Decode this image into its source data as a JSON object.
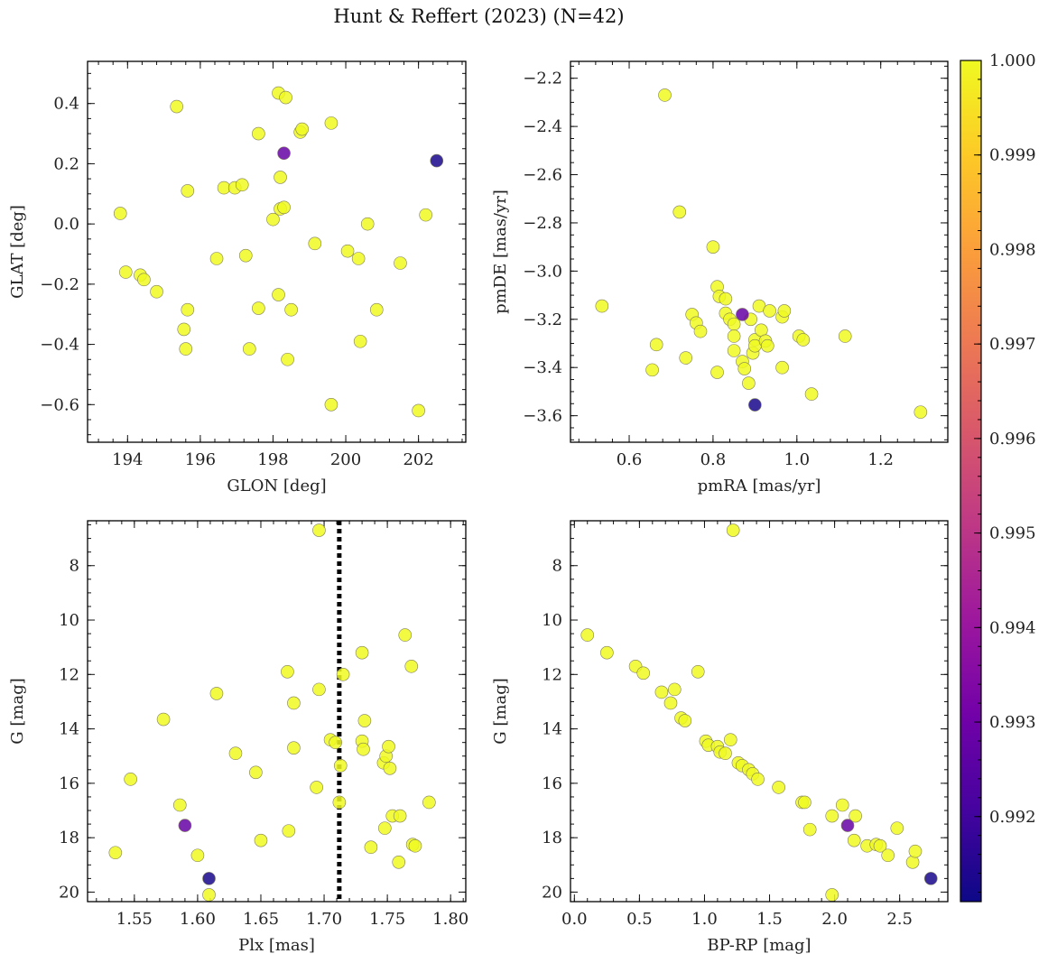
{
  "title": "Hunt & Reffert (2023) (N=42)",
  "colorbar": {
    "range": [
      0.9911,
      1.0
    ],
    "ticks": [
      0.992,
      0.993,
      0.994,
      0.995,
      0.996,
      0.997,
      0.998,
      0.999,
      1.0
    ],
    "tick_labels": [
      "0.992",
      "0.993",
      "0.994",
      "0.995",
      "0.996",
      "0.997",
      "0.998",
      "0.999",
      "1.000"
    ],
    "colormap": "plasma",
    "colors": [
      "#0d0887",
      "#46039f",
      "#7201a8",
      "#9c179e",
      "#bd3786",
      "#d8576b",
      "#ed7953",
      "#fb9f3a",
      "#fdca26",
      "#f0f921"
    ]
  },
  "chart_data": [
    {
      "type": "scatter",
      "name": "sky",
      "xlabel": "GLON [deg]",
      "ylabel": "GLAT [deg]",
      "xlim": [
        192.9,
        203.3
      ],
      "ylim": [
        -0.725,
        0.54
      ],
      "xticks": [
        194,
        196,
        198,
        200,
        202
      ],
      "xtick_labels": [
        "194",
        "196",
        "198",
        "200",
        "202"
      ],
      "yticks": [
        0.4,
        0.2,
        0.0,
        -0.2,
        -0.4,
        -0.6
      ],
      "ytick_labels": [
        "0.4",
        "0.2",
        "0.0",
        "−0.2",
        "−0.4",
        "−0.6"
      ],
      "points": [
        [
          193.8,
          0.035,
          1.0
        ],
        [
          193.95,
          -0.16,
          1.0
        ],
        [
          194.35,
          -0.17,
          1.0
        ],
        [
          194.45,
          -0.185,
          1.0
        ],
        [
          194.8,
          -0.225,
          1.0
        ],
        [
          195.35,
          0.39,
          1.0
        ],
        [
          195.55,
          -0.35,
          1.0
        ],
        [
          195.6,
          -0.415,
          1.0
        ],
        [
          195.65,
          0.11,
          1.0
        ],
        [
          195.65,
          -0.285,
          1.0
        ],
        [
          196.45,
          -0.115,
          1.0
        ],
        [
          196.65,
          0.12,
          1.0
        ],
        [
          196.95,
          0.12,
          1.0
        ],
        [
          197.15,
          0.13,
          1.0
        ],
        [
          197.25,
          -0.105,
          1.0
        ],
        [
          197.35,
          -0.415,
          1.0
        ],
        [
          197.6,
          0.3,
          1.0
        ],
        [
          197.6,
          -0.28,
          1.0
        ],
        [
          198.0,
          0.015,
          1.0
        ],
        [
          198.15,
          -0.235,
          1.0
        ],
        [
          198.15,
          0.435,
          1.0
        ],
        [
          198.2,
          0.155,
          1.0
        ],
        [
          198.2,
          0.05,
          1.0
        ],
        [
          198.3,
          0.055,
          1.0
        ],
        [
          198.35,
          0.42,
          1.0
        ],
        [
          198.4,
          -0.45,
          1.0
        ],
        [
          198.5,
          -0.285,
          1.0
        ],
        [
          198.75,
          0.305,
          1.0
        ],
        [
          198.8,
          0.315,
          1.0
        ],
        [
          199.15,
          -0.065,
          1.0
        ],
        [
          199.6,
          0.335,
          1.0
        ],
        [
          199.6,
          -0.6,
          1.0
        ],
        [
          200.05,
          -0.09,
          1.0
        ],
        [
          200.35,
          -0.115,
          1.0
        ],
        [
          200.4,
          -0.39,
          1.0
        ],
        [
          200.6,
          0.0,
          1.0
        ],
        [
          200.85,
          -0.285,
          1.0
        ],
        [
          201.5,
          -0.13,
          1.0
        ],
        [
          202.0,
          -0.62,
          1.0
        ],
        [
          202.2,
          0.03,
          1.0
        ],
        [
          198.3,
          0.235,
          0.9928
        ],
        [
          202.5,
          0.21,
          0.9913
        ]
      ]
    },
    {
      "type": "scatter",
      "name": "proper-motion",
      "xlabel": "pmRA [mas/yr]",
      "ylabel": "pmDE [mas/yr]",
      "xlim": [
        0.46,
        1.36
      ],
      "ylim": [
        -3.71,
        -2.13
      ],
      "xticks": [
        0.6,
        0.8,
        1.0,
        1.2
      ],
      "xtick_labels": [
        "0.6",
        "0.8",
        "1.0",
        "1.2"
      ],
      "yticks": [
        -2.2,
        -2.4,
        -2.6,
        -2.8,
        -3.0,
        -3.2,
        -3.4,
        -3.6
      ],
      "ytick_labels": [
        "−2.2",
        "−2.4",
        "−2.6",
        "−2.8",
        "−3.0",
        "−3.2",
        "−3.4",
        "−3.6"
      ],
      "points": [
        [
          0.535,
          -3.145,
          1.0
        ],
        [
          0.655,
          -3.41,
          1.0
        ],
        [
          0.665,
          -3.305,
          1.0
        ],
        [
          0.685,
          -2.27,
          1.0
        ],
        [
          0.72,
          -2.755,
          1.0
        ],
        [
          0.735,
          -3.36,
          1.0
        ],
        [
          0.75,
          -3.18,
          1.0
        ],
        [
          0.76,
          -3.215,
          1.0
        ],
        [
          0.77,
          -3.25,
          1.0
        ],
        [
          0.8,
          -2.9,
          1.0
        ],
        [
          0.81,
          -3.065,
          1.0
        ],
        [
          0.815,
          -3.105,
          1.0
        ],
        [
          0.81,
          -3.42,
          1.0
        ],
        [
          0.83,
          -3.115,
          1.0
        ],
        [
          0.83,
          -3.175,
          1.0
        ],
        [
          0.84,
          -3.2,
          1.0
        ],
        [
          0.85,
          -3.22,
          1.0
        ],
        [
          0.85,
          -3.27,
          1.0
        ],
        [
          0.85,
          -3.33,
          1.0
        ],
        [
          0.87,
          -3.375,
          1.0
        ],
        [
          0.875,
          -3.405,
          1.0
        ],
        [
          0.885,
          -3.465,
          1.0
        ],
        [
          0.89,
          -3.2,
          1.0
        ],
        [
          0.895,
          -3.34,
          1.0
        ],
        [
          0.9,
          -3.285,
          1.0
        ],
        [
          0.9,
          -3.31,
          1.0
        ],
        [
          0.91,
          -3.145,
          1.0
        ],
        [
          0.915,
          -3.245,
          1.0
        ],
        [
          0.925,
          -3.29,
          1.0
        ],
        [
          0.93,
          -3.31,
          1.0
        ],
        [
          0.935,
          -3.165,
          1.0
        ],
        [
          0.965,
          -3.19,
          1.0
        ],
        [
          0.965,
          -3.4,
          1.0
        ],
        [
          0.97,
          -3.165,
          1.0
        ],
        [
          1.005,
          -3.27,
          1.0
        ],
        [
          1.015,
          -3.285,
          1.0
        ],
        [
          1.035,
          -3.51,
          1.0
        ],
        [
          1.115,
          -3.27,
          1.0
        ],
        [
          1.295,
          -3.585,
          1.0
        ],
        [
          0.87,
          -3.18,
          0.9928
        ],
        [
          0.9,
          -3.555,
          0.9913
        ]
      ]
    },
    {
      "type": "scatter",
      "name": "parallax-magnitude",
      "xlabel": "Plx [mas]",
      "ylabel": "G [mag]",
      "xlim": [
        1.513,
        1.812
      ],
      "ylim": [
        20.35,
        6.35
      ],
      "y_inverted": true,
      "vline": 1.712,
      "xticks": [
        1.55,
        1.6,
        1.65,
        1.7,
        1.75,
        1.8
      ],
      "xtick_labels": [
        "1.55",
        "1.60",
        "1.65",
        "1.70",
        "1.75",
        "1.80"
      ],
      "yticks": [
        8,
        10,
        12,
        14,
        16,
        18,
        20
      ],
      "ytick_labels": [
        "8",
        "10",
        "12",
        "14",
        "16",
        "18",
        "20"
      ],
      "points": [
        [
          1.535,
          18.55,
          1.0
        ],
        [
          1.547,
          15.85,
          1.0
        ],
        [
          1.573,
          13.65,
          1.0
        ],
        [
          1.586,
          16.8,
          1.0
        ],
        [
          1.6,
          18.65,
          1.0
        ],
        [
          1.609,
          20.1,
          1.0
        ],
        [
          1.615,
          12.7,
          1.0
        ],
        [
          1.63,
          14.9,
          1.0
        ],
        [
          1.646,
          15.6,
          1.0
        ],
        [
          1.65,
          18.1,
          1.0
        ],
        [
          1.671,
          11.9,
          1.0
        ],
        [
          1.672,
          17.75,
          1.0
        ],
        [
          1.676,
          13.05,
          1.0
        ],
        [
          1.676,
          14.7,
          1.0
        ],
        [
          1.694,
          16.15,
          1.0
        ],
        [
          1.696,
          12.55,
          1.0
        ],
        [
          1.696,
          6.7,
          1.0
        ],
        [
          1.705,
          14.4,
          1.0
        ],
        [
          1.709,
          14.5,
          1.0
        ],
        [
          1.712,
          16.7,
          1.0
        ],
        [
          1.713,
          15.35,
          1.0
        ],
        [
          1.715,
          12.0,
          1.0
        ],
        [
          1.73,
          11.2,
          1.0
        ],
        [
          1.73,
          14.45,
          1.0
        ],
        [
          1.731,
          14.75,
          1.0
        ],
        [
          1.732,
          13.7,
          1.0
        ],
        [
          1.737,
          18.35,
          1.0
        ],
        [
          1.747,
          15.25,
          1.0
        ],
        [
          1.749,
          15.0,
          1.0
        ],
        [
          1.748,
          17.65,
          1.0
        ],
        [
          1.751,
          14.65,
          1.0
        ],
        [
          1.752,
          15.45,
          1.0
        ],
        [
          1.754,
          17.2,
          1.0
        ],
        [
          1.759,
          18.9,
          1.0
        ],
        [
          1.76,
          17.2,
          1.0
        ],
        [
          1.764,
          10.55,
          1.0
        ],
        [
          1.769,
          11.7,
          1.0
        ],
        [
          1.77,
          18.25,
          1.0
        ],
        [
          1.772,
          18.3,
          1.0
        ],
        [
          1.783,
          16.7,
          1.0
        ],
        [
          1.59,
          17.55,
          0.9928
        ],
        [
          1.609,
          19.5,
          0.9913
        ]
      ]
    },
    {
      "type": "scatter",
      "name": "color-magnitude",
      "xlabel": "BP-RP [mag]",
      "ylabel": "G [mag]",
      "xlim": [
        -0.03,
        2.87
      ],
      "ylim": [
        20.35,
        6.35
      ],
      "y_inverted": true,
      "xticks": [
        0.0,
        0.5,
        1.0,
        1.5,
        2.0,
        2.5
      ],
      "xtick_labels": [
        "0.0",
        "0.5",
        "1.0",
        "1.5",
        "2.0",
        "2.5"
      ],
      "yticks": [
        8,
        10,
        12,
        14,
        16,
        18,
        20
      ],
      "ytick_labels": [
        "8",
        "10",
        "12",
        "14",
        "16",
        "18",
        "20"
      ],
      "points": [
        [
          0.1,
          10.55,
          1.0
        ],
        [
          0.25,
          11.2,
          1.0
        ],
        [
          0.47,
          11.7,
          1.0
        ],
        [
          0.53,
          11.95,
          1.0
        ],
        [
          0.67,
          12.65,
          1.0
        ],
        [
          0.74,
          13.05,
          1.0
        ],
        [
          0.77,
          12.55,
          1.0
        ],
        [
          0.82,
          13.6,
          1.0
        ],
        [
          0.85,
          13.7,
          1.0
        ],
        [
          0.95,
          11.9,
          1.0
        ],
        [
          1.01,
          14.45,
          1.0
        ],
        [
          1.03,
          14.6,
          1.0
        ],
        [
          1.1,
          14.65,
          1.0
        ],
        [
          1.12,
          14.85,
          1.0
        ],
        [
          1.16,
          14.9,
          1.0
        ],
        [
          1.2,
          14.4,
          1.0
        ],
        [
          1.22,
          6.7,
          1.0
        ],
        [
          1.26,
          15.25,
          1.0
        ],
        [
          1.29,
          15.35,
          1.0
        ],
        [
          1.34,
          15.5,
          1.0
        ],
        [
          1.37,
          15.65,
          1.0
        ],
        [
          1.41,
          15.85,
          1.0
        ],
        [
          1.57,
          16.15,
          1.0
        ],
        [
          1.75,
          16.7,
          1.0
        ],
        [
          1.77,
          16.7,
          1.0
        ],
        [
          1.81,
          17.7,
          1.0
        ],
        [
          1.98,
          17.2,
          1.0
        ],
        [
          1.98,
          20.1,
          1.0
        ],
        [
          2.06,
          16.8,
          1.0
        ],
        [
          2.15,
          18.1,
          1.0
        ],
        [
          2.16,
          17.2,
          1.0
        ],
        [
          2.25,
          18.3,
          1.0
        ],
        [
          2.32,
          18.25,
          1.0
        ],
        [
          2.35,
          18.3,
          1.0
        ],
        [
          2.41,
          18.65,
          1.0
        ],
        [
          2.48,
          17.65,
          1.0
        ],
        [
          2.6,
          18.9,
          1.0
        ],
        [
          2.62,
          18.5,
          1.0
        ],
        [
          2.1,
          17.55,
          0.9928
        ],
        [
          2.74,
          19.5,
          0.9913
        ]
      ]
    }
  ]
}
